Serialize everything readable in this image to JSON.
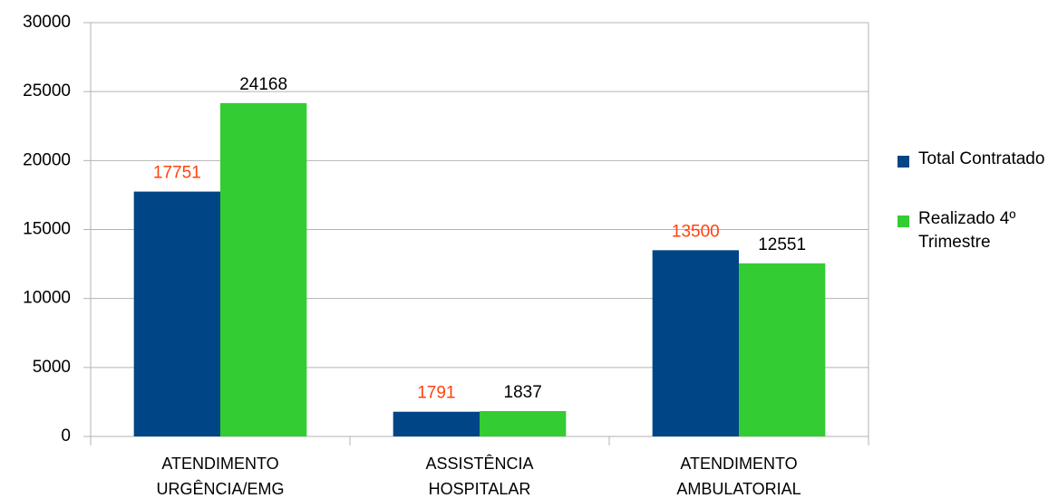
{
  "chart_data": {
    "type": "bar",
    "categories": [
      "ATENDIMENTO URGÊNCIA/EMG",
      "ASSISTÊNCIA HOSPITALAR",
      "ATENDIMENTO AMBULATORIAL"
    ],
    "series": [
      {
        "name": "Total Contratado",
        "color": "#004586",
        "label_color": "#ff420e",
        "values": [
          17751,
          1791,
          13500
        ]
      },
      {
        "name": "Realizado 4º Trimestre",
        "color": "#33cc33",
        "label_color": "#000000",
        "values": [
          24168,
          1837,
          12551
        ]
      }
    ],
    "ylim": [
      0,
      30000
    ],
    "yticks": [
      0,
      5000,
      10000,
      15000,
      20000,
      25000,
      30000
    ],
    "grid": true,
    "legend": "right"
  }
}
